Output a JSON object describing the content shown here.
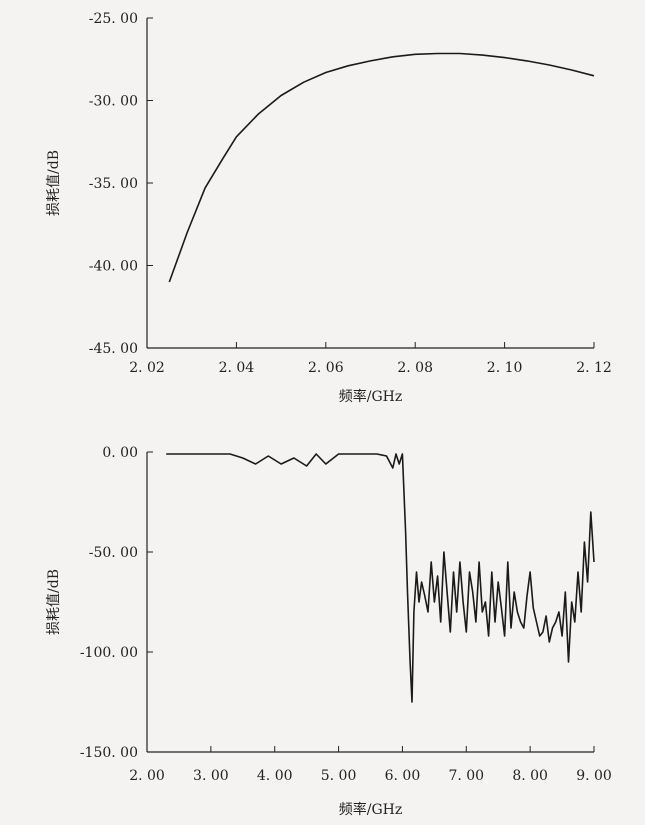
{
  "chart_data": [
    {
      "type": "line",
      "title": "",
      "xlabel": "频率/GHz",
      "ylabel": "损耗值/dB",
      "xlim": [
        2.02,
        2.12
      ],
      "ylim": [
        -45,
        -25
      ],
      "xticks": [
        2.02,
        2.04,
        2.06,
        2.08,
        2.1,
        2.12
      ],
      "xtick_labels": [
        "2. 02",
        "2. 04",
        "2. 06",
        "2. 08",
        "2. 10",
        "2. 12"
      ],
      "yticks": [
        -25,
        -30,
        -35,
        -40,
        -45
      ],
      "ytick_labels": [
        "-25. 00",
        "-30. 00",
        "-35. 00",
        "-40. 00",
        "-45. 00"
      ],
      "grid": false,
      "color": "#1a1a1a",
      "series": [
        {
          "x": [
            2.025,
            2.029,
            2.033,
            2.037,
            2.04,
            2.045,
            2.05,
            2.055,
            2.06,
            2.065,
            2.07,
            2.075,
            2.08,
            2.085,
            2.09,
            2.095,
            2.1,
            2.105,
            2.11,
            2.115,
            2.12
          ],
          "y": [
            -41.0,
            -38.0,
            -35.3,
            -33.5,
            -32.2,
            -30.8,
            -29.7,
            -28.9,
            -28.3,
            -27.9,
            -27.6,
            -27.35,
            -27.2,
            -27.15,
            -27.15,
            -27.25,
            -27.4,
            -27.6,
            -27.85,
            -28.15,
            -28.5
          ]
        }
      ]
    },
    {
      "type": "line",
      "title": "",
      "xlabel": "频率/GHz",
      "ylabel": "损耗值/dB",
      "xlim": [
        2,
        9
      ],
      "ylim": [
        -150,
        0
      ],
      "xticks": [
        2,
        3,
        4,
        5,
        6,
        7,
        8,
        9
      ],
      "xtick_labels": [
        "2. 00",
        "3. 00",
        "4. 00",
        "5. 00",
        "6. 00",
        "7. 00",
        "8. 00",
        "9. 00"
      ],
      "yticks": [
        0,
        -50,
        -100,
        -150
      ],
      "ytick_labels": [
        "0. 00",
        "-50. 00",
        "-100. 00",
        "-150. 00"
      ],
      "grid": false,
      "color": "#1a1a1a",
      "series": [
        {
          "x": [
            2.3,
            2.6,
            3.0,
            3.3,
            3.5,
            3.7,
            3.9,
            4.1,
            4.3,
            4.5,
            4.65,
            4.8,
            5.0,
            5.2,
            5.4,
            5.6,
            5.75,
            5.85,
            5.9,
            5.95,
            6.0,
            6.05,
            6.08,
            6.12,
            6.15,
            6.18,
            6.22,
            6.26,
            6.3,
            6.35,
            6.4,
            6.45,
            6.5,
            6.55,
            6.6,
            6.65,
            6.7,
            6.75,
            6.8,
            6.85,
            6.9,
            6.95,
            7.0,
            7.05,
            7.1,
            7.15,
            7.2,
            7.25,
            7.3,
            7.35,
            7.4,
            7.45,
            7.5,
            7.55,
            7.6,
            7.65,
            7.7,
            7.75,
            7.8,
            7.85,
            7.9,
            7.95,
            8.0,
            8.05,
            8.1,
            8.15,
            8.2,
            8.25,
            8.3,
            8.35,
            8.4,
            8.45,
            8.5,
            8.55,
            8.6,
            8.65,
            8.7,
            8.75,
            8.8,
            8.85,
            8.9,
            8.95,
            9.0
          ],
          "y": [
            -1,
            -1,
            -1,
            -1,
            -3,
            -6,
            -2,
            -6,
            -3,
            -7,
            -1,
            -6,
            -1,
            -1,
            -1,
            -1,
            -2,
            -8,
            -1,
            -6,
            -1,
            -40,
            -70,
            -105,
            -125,
            -80,
            -60,
            -75,
            -65,
            -72,
            -80,
            -55,
            -75,
            -62,
            -85,
            -50,
            -70,
            -90,
            -60,
            -80,
            -55,
            -75,
            -90,
            -60,
            -70,
            -85,
            -55,
            -80,
            -75,
            -92,
            -60,
            -85,
            -65,
            -78,
            -92,
            -55,
            -88,
            -70,
            -80,
            -85,
            -88,
            -72,
            -60,
            -78,
            -85,
            -92,
            -90,
            -82,
            -95,
            -88,
            -85,
            -80,
            -92,
            -70,
            -105,
            -75,
            -85,
            -60,
            -80,
            -45,
            -65,
            -30,
            -55
          ]
        }
      ]
    }
  ]
}
